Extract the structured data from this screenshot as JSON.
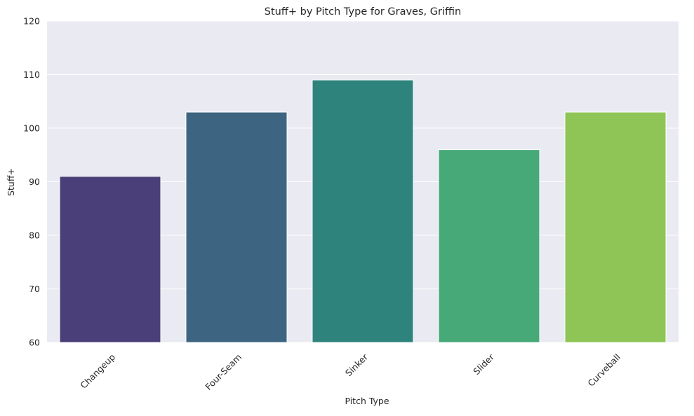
{
  "chart_data": {
    "type": "bar",
    "title": "Stuff+ by Pitch Type for Graves, Griffin",
    "xlabel": "Pitch Type",
    "ylabel": "Stuff+",
    "categories": [
      "Changeup",
      "Four-Seam",
      "Sinker",
      "Slider",
      "Curveball"
    ],
    "values": [
      91,
      103,
      109,
      96,
      103
    ],
    "colors": [
      "#4a3f78",
      "#3d6581",
      "#2f837d",
      "#47a878",
      "#8ec556"
    ],
    "ylim": [
      60,
      120
    ],
    "yticks": [
      60,
      70,
      80,
      90,
      100,
      110,
      120
    ],
    "grid": true,
    "background": "#eaeaf2",
    "legend": "none"
  }
}
